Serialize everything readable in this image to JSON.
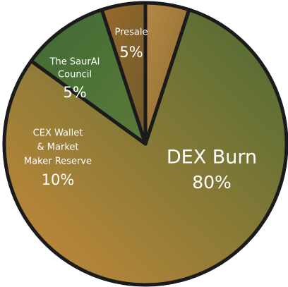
{
  "chart_data": {
    "type": "pie",
    "title": "",
    "slices": [
      {
        "label_lines": [
          "DEX Burn"
        ],
        "value": 80,
        "value_label": "80%",
        "color": "#5f6b33"
      },
      {
        "label_lines": [
          "CEX Wallet",
          "& Market",
          "Maker Reserve"
        ],
        "value": 10,
        "value_label": "10%",
        "color": "#4b6a33"
      },
      {
        "label_lines": [
          "The SaurAI",
          "Council"
        ],
        "value": 5,
        "value_label": "5%",
        "color": "#8f6a2c"
      },
      {
        "label_lines": [
          "Presale"
        ],
        "value": 5,
        "value_label": "5%",
        "color": "#a8793d"
      }
    ],
    "colors": {
      "outline": "#1b1b1b",
      "dex_gradient_start": "#c98a3a",
      "dex_gradient_end": "#4a6a33",
      "cex_gradient_start": "#3f6a33",
      "cex_gradient_end": "#5b7a3a",
      "council_gradient_start": "#9a6a2c",
      "council_gradient_end": "#6d5a2a",
      "presale_gradient_start": "#b58845",
      "presale_gradient_end": "#8a6a2f"
    }
  }
}
